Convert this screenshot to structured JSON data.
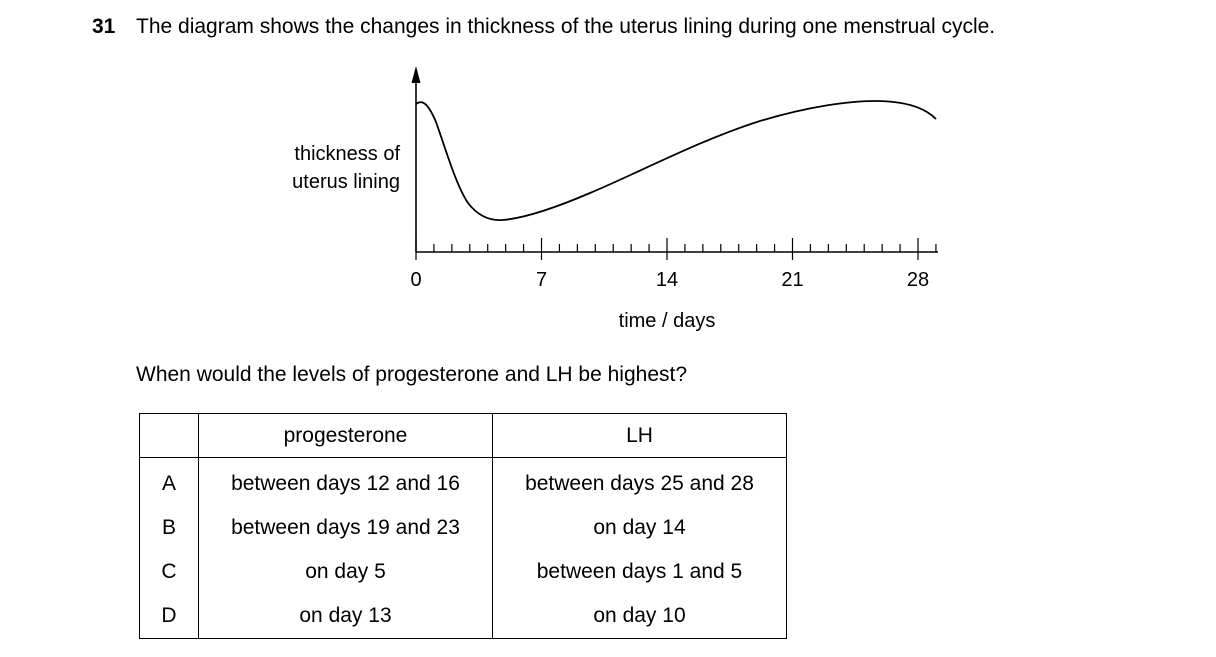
{
  "question": {
    "number": "31",
    "text": "The diagram shows the changes in thickness of the uterus lining during one menstrual cycle.",
    "prompt": "When would the levels of progesterone and LH be highest?"
  },
  "diagram": {
    "y_label_lines": [
      "thickness of",
      "uterus lining"
    ],
    "x_label": "time / days",
    "x_tick_labels": [
      "0",
      "7",
      "14",
      "21",
      "28"
    ]
  },
  "table": {
    "headers": [
      "",
      "progesterone",
      "LH"
    ],
    "rows": [
      {
        "letter": "A",
        "progesterone": "between days 12 and 16",
        "lh": "between days 25 and 28"
      },
      {
        "letter": "B",
        "progesterone": "between days 19 and 23",
        "lh": "on day 14"
      },
      {
        "letter": "C",
        "progesterone": "on day 5",
        "lh": "between days 1 and 5"
      },
      {
        "letter": "D",
        "progesterone": "on day 13",
        "lh": "on day 10"
      }
    ]
  }
}
